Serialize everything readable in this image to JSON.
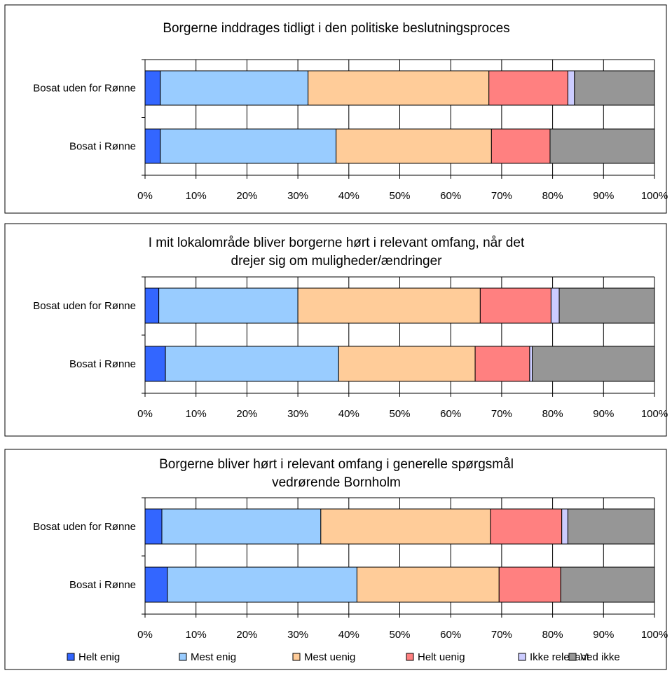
{
  "chart_data": [
    {
      "type": "bar",
      "orientation": "horizontal",
      "stacked": "percent",
      "title_lines": [
        "Borgerne inddrages tidligt i den politiske beslutningsproces"
      ],
      "categories": [
        "Bosat uden for Rønne",
        "Bosat i Rønne"
      ],
      "xlim": [
        0,
        100
      ],
      "x_ticks": [
        "0%",
        "10%",
        "20%",
        "30%",
        "40%",
        "50%",
        "60%",
        "70%",
        "80%",
        "90%",
        "100%"
      ],
      "series": [
        {
          "name": "Helt enig",
          "values": [
            3,
            3
          ]
        },
        {
          "name": "Mest enig",
          "values": [
            29,
            34.5
          ]
        },
        {
          "name": "Mest uenig",
          "values": [
            35.5,
            30.5
          ]
        },
        {
          "name": "Helt uenig",
          "values": [
            15.5,
            11.5
          ]
        },
        {
          "name": "Ikke relevant",
          "values": [
            1.3,
            0
          ]
        },
        {
          "name": "Ved ikke",
          "values": [
            15.7,
            20.5
          ]
        }
      ]
    },
    {
      "type": "bar",
      "orientation": "horizontal",
      "stacked": "percent",
      "title_lines": [
        "I mit lokalområde bliver borgerne hørt i relevant omfang, når det",
        "drejer sig om muligheder/ændringer"
      ],
      "categories": [
        "Bosat uden for Rønne",
        "Bosat i Rønne"
      ],
      "xlim": [
        0,
        100
      ],
      "x_ticks": [
        "0%",
        "10%",
        "20%",
        "30%",
        "40%",
        "50%",
        "60%",
        "70%",
        "80%",
        "90%",
        "100%"
      ],
      "series": [
        {
          "name": "Helt enig",
          "values": [
            2.7,
            4
          ]
        },
        {
          "name": "Mest enig",
          "values": [
            27.3,
            34
          ]
        },
        {
          "name": "Mest uenig",
          "values": [
            35.8,
            26.8
          ]
        },
        {
          "name": "Helt uenig",
          "values": [
            13.9,
            10.7
          ]
        },
        {
          "name": "Ikke relevant",
          "values": [
            1.6,
            0.5
          ]
        },
        {
          "name": "Ved ikke",
          "values": [
            18.7,
            24
          ]
        }
      ]
    },
    {
      "type": "bar",
      "orientation": "horizontal",
      "stacked": "percent",
      "title_lines": [
        "Borgerne bliver hørt i relevant omfang i generelle spørgsmål",
        "vedrørende Bornholm"
      ],
      "categories": [
        "Bosat uden for Rønne",
        "Bosat i Rønne"
      ],
      "xlim": [
        0,
        100
      ],
      "x_ticks": [
        "0%",
        "10%",
        "20%",
        "30%",
        "40%",
        "50%",
        "60%",
        "70%",
        "80%",
        "90%",
        "100%"
      ],
      "series": [
        {
          "name": "Helt enig",
          "values": [
            3.3,
            4.4
          ]
        },
        {
          "name": "Mest enig",
          "values": [
            31.2,
            37.2
          ]
        },
        {
          "name": "Mest uenig",
          "values": [
            33.3,
            27.9
          ]
        },
        {
          "name": "Helt uenig",
          "values": [
            14,
            12.1
          ]
        },
        {
          "name": "Ikke relevant",
          "values": [
            1.2,
            0
          ]
        },
        {
          "name": "Ved ikke",
          "values": [
            17,
            18.4
          ]
        }
      ]
    }
  ],
  "legend": {
    "placement": "bottom",
    "items": [
      {
        "label": "Helt enig",
        "color": "#3366ff"
      },
      {
        "label": "Mest enig",
        "color": "#99ccff"
      },
      {
        "label": "Mest uenig",
        "color": "#ffcc99"
      },
      {
        "label": "Helt uenig",
        "color": "#ff8080"
      },
      {
        "label": "Ikke relevant",
        "color": "#ccccff"
      },
      {
        "label": "Ved ikke",
        "color": "#969696"
      }
    ]
  }
}
